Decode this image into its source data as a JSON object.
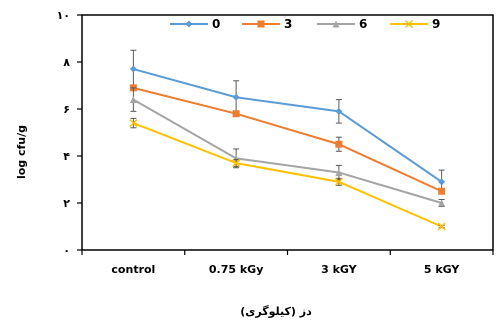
{
  "chart_data": {
    "type": "line",
    "title": "",
    "ylabel": "log cfu/g",
    "xlabel": "دز (کیلوگری)",
    "categories": [
      "control",
      "0.75 kGy",
      "3 kGY",
      "5 kGY"
    ],
    "ylim": [
      0,
      10
    ],
    "yticks": [
      0,
      2,
      4,
      6,
      8,
      10
    ],
    "ytick_labels": [
      "۰",
      "۲",
      "۴",
      "۶",
      "۸",
      "۱۰"
    ],
    "grid": false,
    "legend_position": "top",
    "series": [
      {
        "name": "0",
        "values": [
          7.7,
          6.5,
          5.9,
          2.9
        ],
        "errors": [
          0.8,
          0.7,
          0.5,
          0.5
        ],
        "color": "#5B9BD5",
        "marker": "diamond"
      },
      {
        "name": "3",
        "values": [
          6.9,
          5.8,
          4.5,
          2.5
        ],
        "errors": [
          0.0,
          0.0,
          0.3,
          0.0
        ],
        "color": "#ED7D31",
        "marker": "square"
      },
      {
        "name": "6",
        "values": [
          6.4,
          3.9,
          3.3,
          2.0
        ],
        "errors": [
          0.5,
          0.4,
          0.3,
          0.15
        ],
        "color": "#A5A5A5",
        "marker": "triangle"
      },
      {
        "name": "9",
        "values": [
          5.4,
          3.7,
          2.9,
          1.0
        ],
        "errors": [
          0.2,
          0.15,
          0.15,
          0.05
        ],
        "color": "#FFC000",
        "marker": "x"
      }
    ]
  }
}
